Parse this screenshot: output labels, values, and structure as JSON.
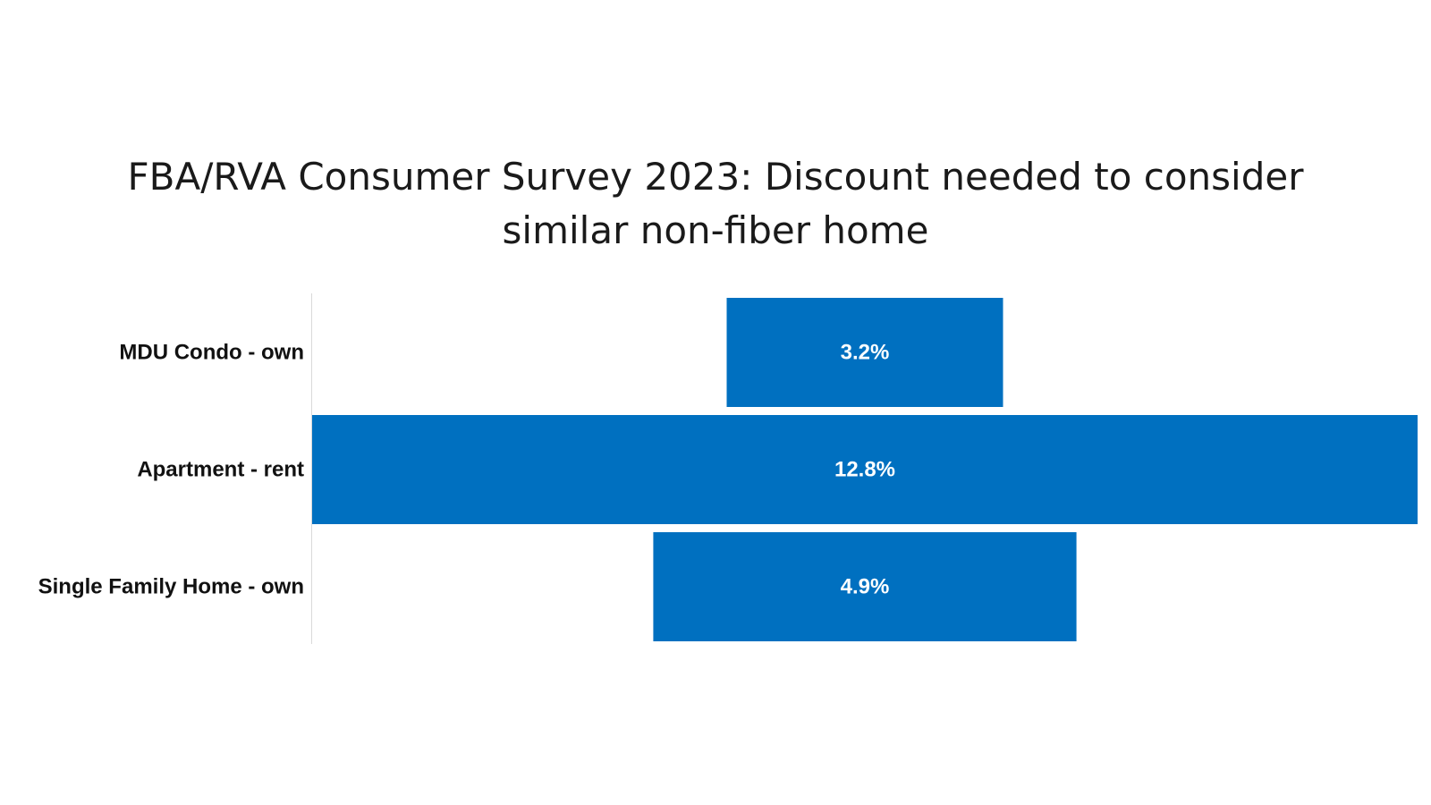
{
  "chart_data": {
    "type": "bar",
    "orientation": "horizontal",
    "layout": "centered-funnel",
    "title": "FBA/RVA Consumer Survey 2023: Discount needed to consider similar non-fiber home",
    "categories": [
      "MDU Condo - own",
      "Apartment - rent",
      "Single Family Home - own"
    ],
    "values": [
      3.2,
      12.8,
      4.9
    ],
    "data_labels": [
      "3.2%",
      "12.8%",
      "4.9%"
    ],
    "unit": "%",
    "xlabel": "",
    "ylabel": "",
    "grid": false,
    "legend": "none",
    "bar_color": "#0070C0"
  }
}
